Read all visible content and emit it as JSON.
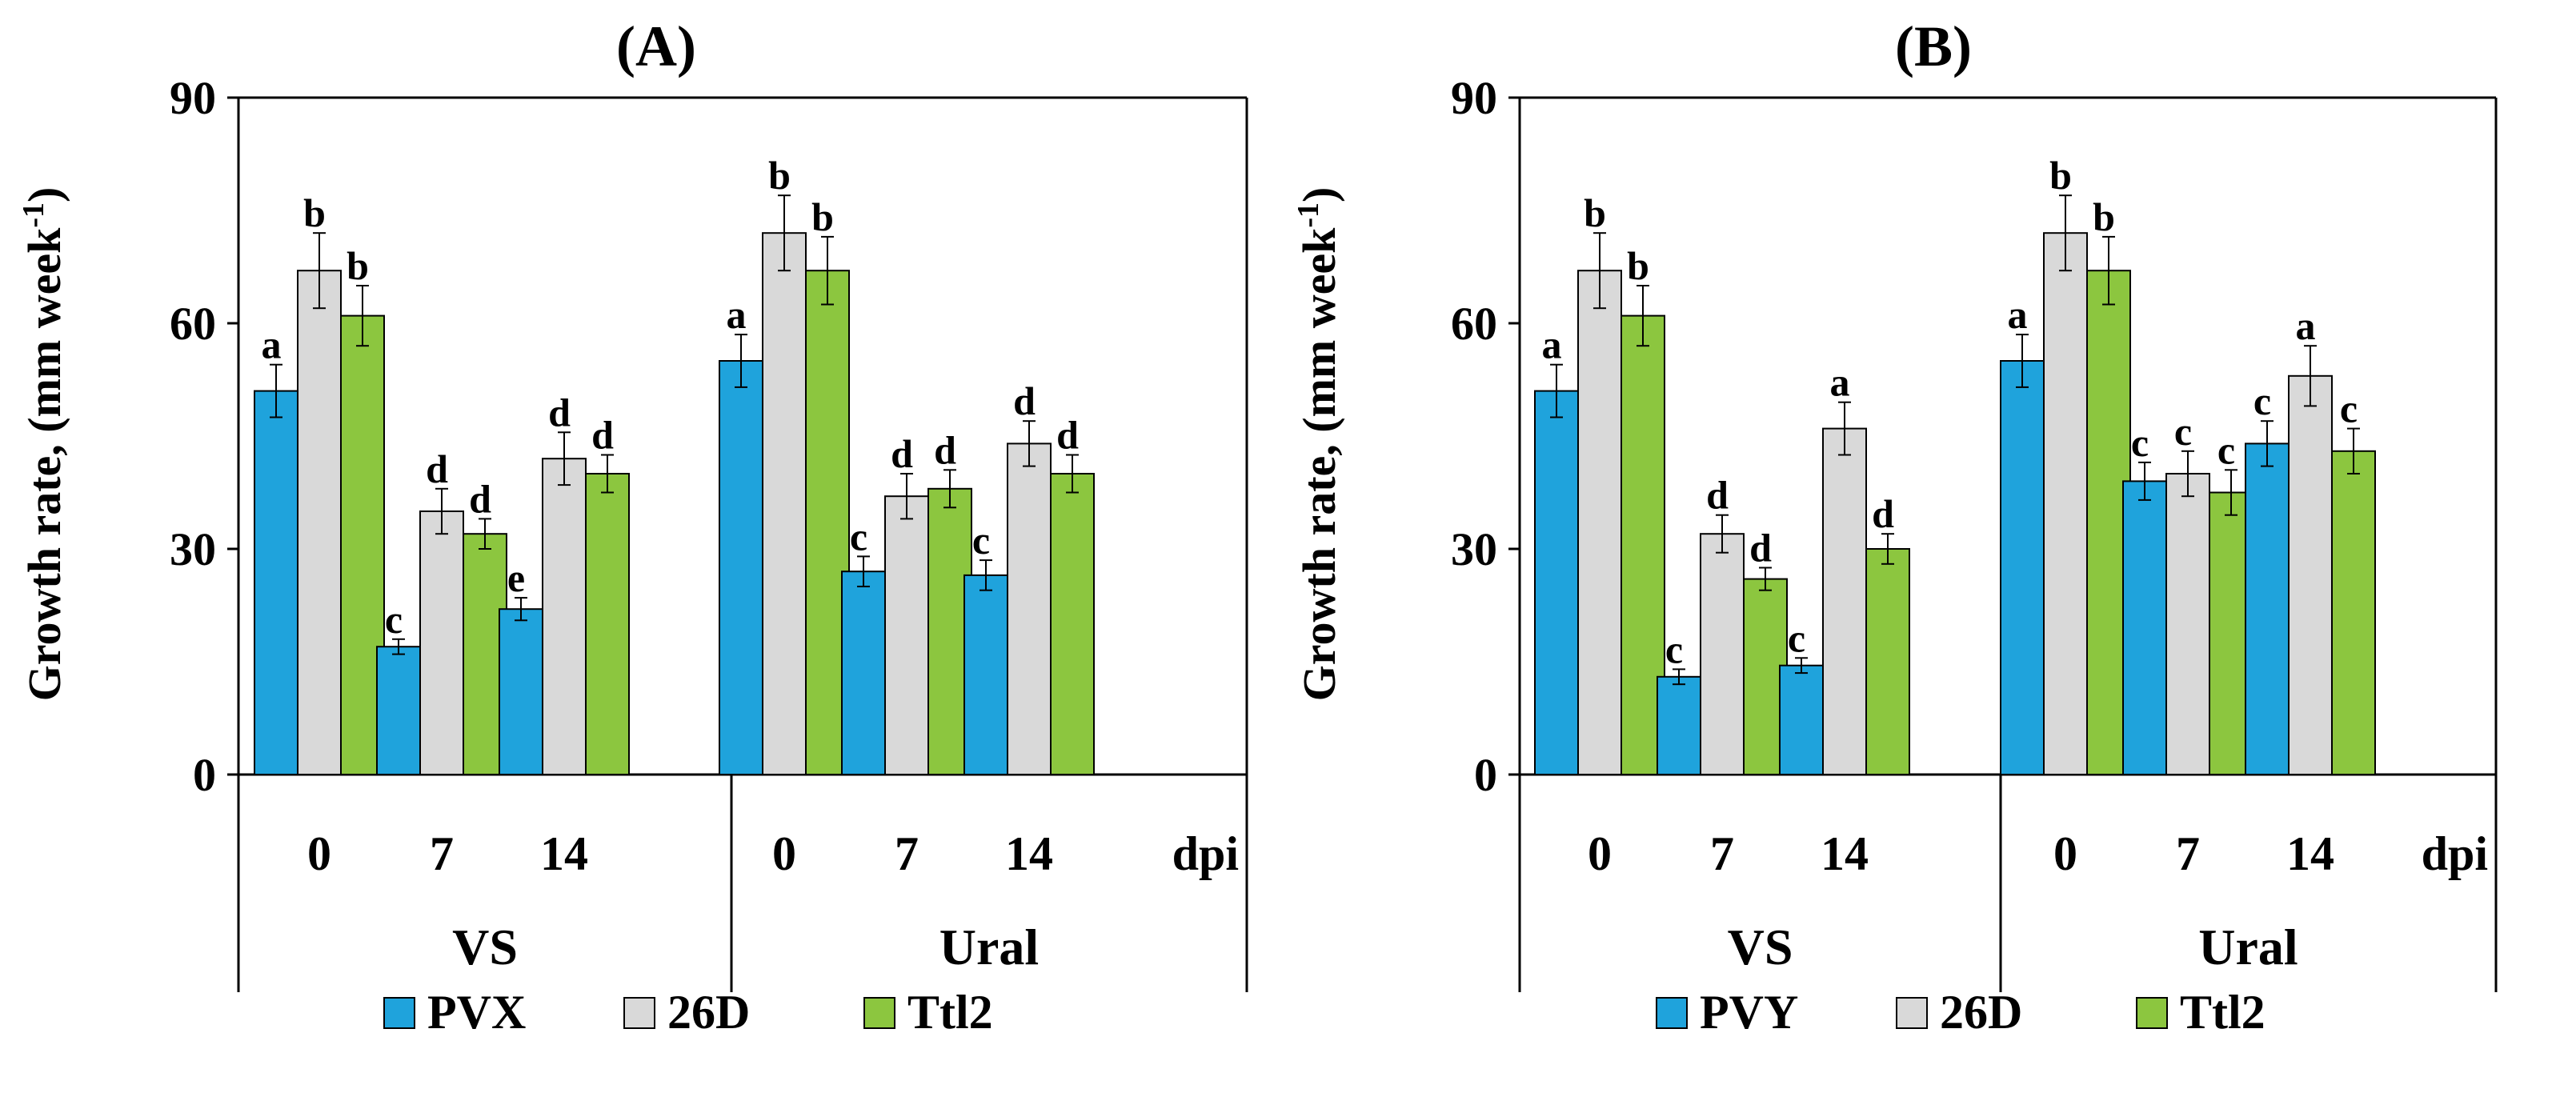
{
  "chart_data": [
    {
      "type": "bar",
      "panel_label": "(A)",
      "ylabel": "Growth rate, (mm week",
      "ylabel_sup": "-1",
      "ylabel_close": ")",
      "ylim": [
        0,
        90
      ],
      "yticks": [
        "0",
        "30",
        "60",
        "90"
      ],
      "ytick_values": [
        0,
        30,
        60,
        90
      ],
      "xunit": "dpi",
      "groups": [
        {
          "name": "VS",
          "categories": [
            "0",
            "7",
            "14"
          ]
        },
        {
          "name": "Ural",
          "categories": [
            "0",
            "7",
            "14"
          ]
        }
      ],
      "series": [
        {
          "name": "PVX",
          "color": "#1fa3dc",
          "values": [
            51,
            17,
            22,
            55,
            27,
            26.5
          ],
          "errors": [
            3.5,
            1.0,
            1.5,
            3.5,
            2.0,
            2.0
          ],
          "labels": [
            "a",
            "c",
            "e",
            "a",
            "c",
            "c"
          ]
        },
        {
          "name": "26D",
          "color": "#d9d9d9",
          "values": [
            67,
            35,
            42,
            72,
            37,
            44
          ],
          "errors": [
            5.0,
            3.0,
            3.5,
            5.0,
            3.0,
            3.0
          ],
          "labels": [
            "b",
            "d",
            "d",
            "b",
            "d",
            "d"
          ]
        },
        {
          "name": "Ttl2",
          "color": "#8cc63f",
          "values": [
            61,
            32,
            40,
            67,
            38,
            40
          ],
          "errors": [
            4.0,
            2.0,
            2.5,
            4.5,
            2.5,
            2.5
          ],
          "labels": [
            "b",
            "d",
            "d",
            "b",
            "d",
            "d"
          ]
        }
      ]
    },
    {
      "type": "bar",
      "panel_label": "(B)",
      "ylabel": "Growth rate, (mm week",
      "ylabel_sup": "-1",
      "ylabel_close": ")",
      "ylim": [
        0,
        90
      ],
      "yticks": [
        "0",
        "30",
        "60",
        "90"
      ],
      "ytick_values": [
        0,
        30,
        60,
        90
      ],
      "xunit": "dpi",
      "groups": [
        {
          "name": "VS",
          "categories": [
            "0",
            "7",
            "14"
          ]
        },
        {
          "name": "Ural",
          "categories": [
            "0",
            "7",
            "14"
          ]
        }
      ],
      "series": [
        {
          "name": "PVY",
          "color": "#1fa3dc",
          "values": [
            51,
            13,
            14.5,
            55,
            39,
            44
          ],
          "errors": [
            3.5,
            1.0,
            1.0,
            3.5,
            2.5,
            3.0
          ],
          "labels": [
            "a",
            "c",
            "c",
            "a",
            "c",
            "c"
          ]
        },
        {
          "name": "26D",
          "color": "#d9d9d9",
          "values": [
            67,
            32,
            46,
            72,
            40,
            53
          ],
          "errors": [
            5.0,
            2.5,
            3.5,
            5.0,
            3.0,
            4.0
          ],
          "labels": [
            "b",
            "d",
            "a",
            "b",
            "c",
            "a"
          ]
        },
        {
          "name": "Ttl2",
          "color": "#8cc63f",
          "values": [
            61,
            26,
            30,
            67,
            37.5,
            43
          ],
          "errors": [
            4.0,
            1.5,
            2.0,
            4.5,
            3.0,
            3.0
          ],
          "labels": [
            "b",
            "d",
            "d",
            "b",
            "c",
            "c"
          ]
        }
      ]
    }
  ]
}
